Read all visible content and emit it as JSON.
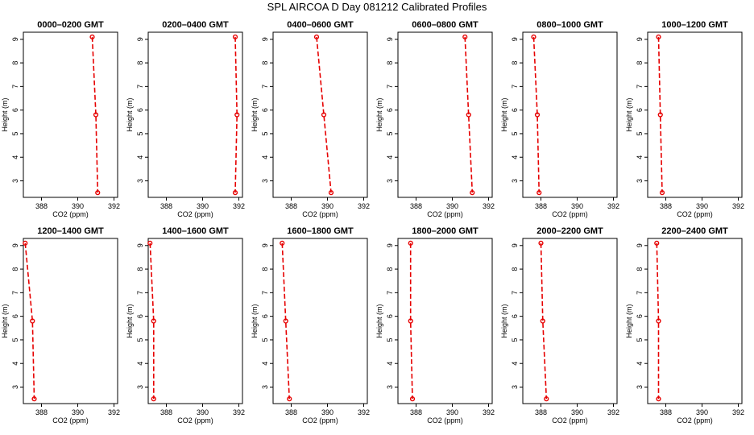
{
  "figure": {
    "title": "SPL AIRCOA D  Day 081212  Calibrated Profiles"
  },
  "chart_data": [
    {
      "type": "line",
      "title": "0000–0200 GMT",
      "xlabel": "CO2 (ppm)",
      "ylabel": "Height (m)",
      "xlim": [
        387,
        392.2
      ],
      "ylim": [
        2.3,
        9.3
      ],
      "xticks": [
        388,
        390,
        392
      ],
      "yticks": [
        3,
        4,
        5,
        6,
        7,
        8,
        9
      ],
      "grid": false,
      "x": [
        390.8,
        391.0,
        391.1
      ],
      "y": [
        9.1,
        5.8,
        2.5
      ]
    },
    {
      "type": "line",
      "title": "0200–0400 GMT",
      "xlabel": "CO2 (ppm)",
      "ylabel": "Height (m)",
      "xlim": [
        387,
        392.2
      ],
      "ylim": [
        2.3,
        9.3
      ],
      "xticks": [
        388,
        390,
        392
      ],
      "yticks": [
        3,
        4,
        5,
        6,
        7,
        8,
        9
      ],
      "grid": false,
      "x": [
        391.8,
        391.9,
        391.8
      ],
      "y": [
        9.1,
        5.8,
        2.5
      ]
    },
    {
      "type": "line",
      "title": "0400–0600 GMT",
      "xlabel": "CO2 (ppm)",
      "ylabel": "Height (m)",
      "xlim": [
        387,
        392.2
      ],
      "ylim": [
        2.3,
        9.3
      ],
      "xticks": [
        388,
        390,
        392
      ],
      "yticks": [
        3,
        4,
        5,
        6,
        7,
        8,
        9
      ],
      "grid": false,
      "x": [
        389.4,
        389.8,
        390.2
      ],
      "y": [
        9.1,
        5.8,
        2.5
      ]
    },
    {
      "type": "line",
      "title": "0600–0800 GMT",
      "xlabel": "CO2 (ppm)",
      "ylabel": "Height (m)",
      "xlim": [
        387,
        392.2
      ],
      "ylim": [
        2.3,
        9.3
      ],
      "xticks": [
        388,
        390,
        392
      ],
      "yticks": [
        3,
        4,
        5,
        6,
        7,
        8,
        9
      ],
      "grid": false,
      "x": [
        390.7,
        390.9,
        391.1
      ],
      "y": [
        9.1,
        5.8,
        2.5
      ]
    },
    {
      "type": "line",
      "title": "0800–1000 GMT",
      "xlabel": "CO2 (ppm)",
      "ylabel": "Height (m)",
      "xlim": [
        387,
        392.2
      ],
      "ylim": [
        2.3,
        9.3
      ],
      "xticks": [
        388,
        390,
        392
      ],
      "yticks": [
        3,
        4,
        5,
        6,
        7,
        8,
        9
      ],
      "grid": false,
      "x": [
        387.6,
        387.8,
        387.9
      ],
      "y": [
        9.1,
        5.8,
        2.5
      ]
    },
    {
      "type": "line",
      "title": "1000–1200 GMT",
      "xlabel": "CO2 (ppm)",
      "ylabel": "Height (m)",
      "xlim": [
        387,
        392.2
      ],
      "ylim": [
        2.3,
        9.3
      ],
      "xticks": [
        388,
        390,
        392
      ],
      "yticks": [
        3,
        4,
        5,
        6,
        7,
        8,
        9
      ],
      "grid": false,
      "x": [
        387.6,
        387.7,
        387.8
      ],
      "y": [
        9.1,
        5.8,
        2.5
      ]
    },
    {
      "type": "line",
      "title": "1200–1400 GMT",
      "xlabel": "CO2 (ppm)",
      "ylabel": "Height (m)",
      "xlim": [
        387,
        392.2
      ],
      "ylim": [
        2.3,
        9.3
      ],
      "xticks": [
        388,
        390,
        392
      ],
      "yticks": [
        3,
        4,
        5,
        6,
        7,
        8,
        9
      ],
      "grid": false,
      "x": [
        387.1,
        387.5,
        387.6
      ],
      "y": [
        9.1,
        5.8,
        2.5
      ]
    },
    {
      "type": "line",
      "title": "1400–1600 GMT",
      "xlabel": "CO2 (ppm)",
      "ylabel": "Height (m)",
      "xlim": [
        387,
        392.2
      ],
      "ylim": [
        2.3,
        9.3
      ],
      "xticks": [
        388,
        390,
        392
      ],
      "yticks": [
        3,
        4,
        5,
        6,
        7,
        8,
        9
      ],
      "grid": false,
      "x": [
        387.1,
        387.3,
        387.3
      ],
      "y": [
        9.1,
        5.8,
        2.5
      ]
    },
    {
      "type": "line",
      "title": "1600–1800 GMT",
      "xlabel": "CO2 (ppm)",
      "ylabel": "Height (m)",
      "xlim": [
        387,
        392.2
      ],
      "ylim": [
        2.3,
        9.3
      ],
      "xticks": [
        388,
        390,
        392
      ],
      "yticks": [
        3,
        4,
        5,
        6,
        7,
        8,
        9
      ],
      "grid": false,
      "x": [
        387.5,
        387.7,
        387.9
      ],
      "y": [
        9.1,
        5.8,
        2.5
      ]
    },
    {
      "type": "line",
      "title": "1800–2000 GMT",
      "xlabel": "CO2 (ppm)",
      "ylabel": "Height (m)",
      "xlim": [
        387,
        392.2
      ],
      "ylim": [
        2.3,
        9.3
      ],
      "xticks": [
        388,
        390,
        392
      ],
      "yticks": [
        3,
        4,
        5,
        6,
        7,
        8,
        9
      ],
      "grid": false,
      "x": [
        387.7,
        387.7,
        387.8
      ],
      "y": [
        9.1,
        5.8,
        2.5
      ]
    },
    {
      "type": "line",
      "title": "2000–2200 GMT",
      "xlabel": "CO2 (ppm)",
      "ylabel": "Height (m)",
      "xlim": [
        387,
        392.2
      ],
      "ylim": [
        2.3,
        9.3
      ],
      "xticks": [
        388,
        390,
        392
      ],
      "yticks": [
        3,
        4,
        5,
        6,
        7,
        8,
        9
      ],
      "grid": false,
      "x": [
        388.0,
        388.1,
        388.3
      ],
      "y": [
        9.1,
        5.8,
        2.5
      ]
    },
    {
      "type": "line",
      "title": "2200–2400 GMT",
      "xlabel": "CO2 (ppm)",
      "ylabel": "Height (m)",
      "xlim": [
        387,
        392.2
      ],
      "ylim": [
        2.3,
        9.3
      ],
      "xticks": [
        388,
        390,
        392
      ],
      "yticks": [
        3,
        4,
        5,
        6,
        7,
        8,
        9
      ],
      "grid": false,
      "x": [
        387.5,
        387.6,
        387.6
      ],
      "y": [
        9.1,
        5.8,
        2.5
      ]
    }
  ]
}
